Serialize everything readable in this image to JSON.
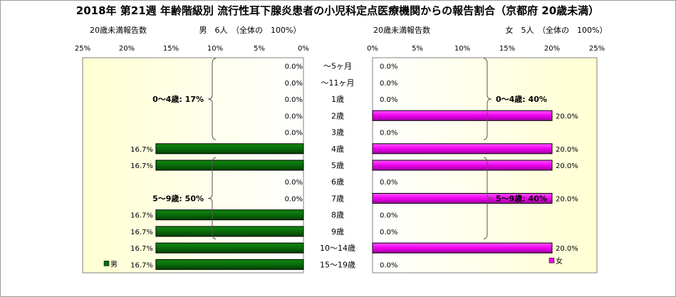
{
  "title": "2018年 第21週 年齢階級別 流行性耳下腺炎患者の小児科定点医療機関からの報告割合（京都府 20歳未満）",
  "chart_data": {
    "type": "bar",
    "categories": [
      "～5ヶ月",
      "～11ヶ月",
      "1歳",
      "2歳",
      "3歳",
      "4歳",
      "5歳",
      "6歳",
      "7歳",
      "8歳",
      "9歳",
      "10～14歳",
      "15～19歳"
    ],
    "left_panel": {
      "subtitle_left": "20歳未満報告数",
      "subtitle_right": "男　6人　（全体の　100%）",
      "series": [
        {
          "name": "男",
          "color": "#0a6b0a",
          "values": [
            0.0,
            0.0,
            0.0,
            0.0,
            0.0,
            16.7,
            16.7,
            0.0,
            0.0,
            16.7,
            16.7,
            16.7,
            16.7
          ]
        }
      ],
      "value_labels": [
        "0.0%",
        "0.0%",
        "0.0%",
        "0.0%",
        "0.0%",
        "16.7%",
        "16.7%",
        "0.0%",
        "0.0%",
        "16.7%",
        "16.7%",
        "16.7%",
        "16.7%"
      ],
      "xlim": [
        0,
        25
      ],
      "tick_labels": [
        "25%",
        "20%",
        "15%",
        "10%",
        "5%",
        "0%"
      ],
      "group_labels": [
        {
          "text": "0～4歳: 17%",
          "from": 0,
          "to": 4
        },
        {
          "text": "5～9歳: 50%",
          "from": 6,
          "to": 10
        }
      ],
      "legend": "男"
    },
    "right_panel": {
      "subtitle_left": "20歳未満報告数",
      "subtitle_right": "女　5人　（全体の　100%）",
      "series": [
        {
          "name": "女",
          "color": "#ee00ee",
          "values": [
            0.0,
            0.0,
            0.0,
            20.0,
            0.0,
            20.0,
            20.0,
            0.0,
            20.0,
            0.0,
            0.0,
            20.0,
            0.0
          ]
        }
      ],
      "value_labels": [
        "0.0%",
        "0.0%",
        "0.0%",
        "20.0%",
        "0.0%",
        "20.0%",
        "20.0%",
        "0.0%",
        "20.0%",
        "0.0%",
        "0.0%",
        "20.0%",
        "0.0%"
      ],
      "xlim": [
        0,
        25
      ],
      "tick_labels": [
        "0%",
        "5%",
        "10%",
        "15%",
        "20%",
        "25%"
      ],
      "group_labels": [
        {
          "text": "0～4歳: 40%",
          "from": 0,
          "to": 4
        },
        {
          "text": "5～9歳: 40%",
          "from": 6,
          "to": 10
        }
      ],
      "legend": "女"
    }
  }
}
